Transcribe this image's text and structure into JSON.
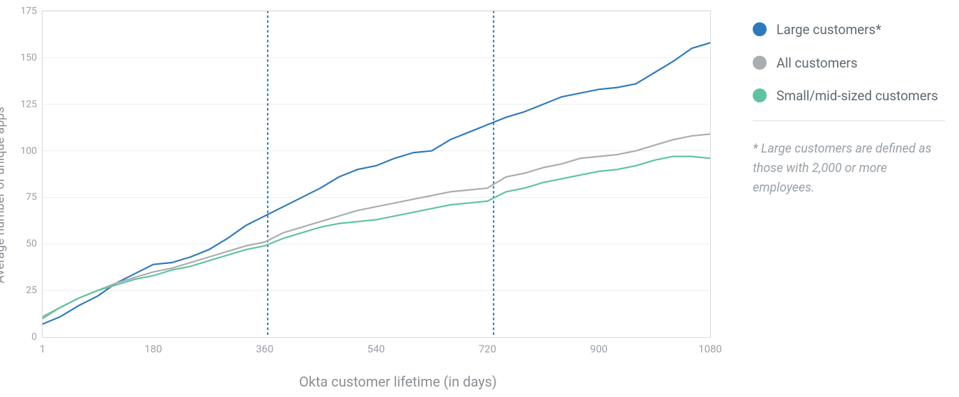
{
  "chart": {
    "type": "line",
    "y_axis_title": "Average number of unique apps",
    "x_axis_title": "Okta customer lifetime (in days)",
    "xlim": [
      1,
      1080
    ],
    "ylim": [
      0,
      175
    ],
    "xticks": [
      1,
      180,
      360,
      540,
      720,
      900,
      1080
    ],
    "yticks": [
      0,
      25,
      50,
      75,
      100,
      125,
      150,
      175
    ],
    "grid_color": "#eceeef",
    "border_color": "#d6d9db",
    "background_color": "#ffffff",
    "tick_label_color": "#9aa0a6",
    "axis_title_color": "#8a8f94",
    "tick_fontsize": 14,
    "axis_title_fontsize": 19,
    "reference_lines": {
      "x_values": [
        365,
        730
      ],
      "color": "#1f77b4",
      "dash": "2,5",
      "width": 2
    },
    "series": [
      {
        "name": "Large customers*",
        "color": "#2e79bd",
        "width": 2.2,
        "data": [
          [
            1,
            7
          ],
          [
            30,
            11
          ],
          [
            60,
            17
          ],
          [
            90,
            22
          ],
          [
            120,
            29
          ],
          [
            150,
            34
          ],
          [
            180,
            39
          ],
          [
            210,
            40
          ],
          [
            240,
            43
          ],
          [
            270,
            47
          ],
          [
            300,
            53
          ],
          [
            330,
            60
          ],
          [
            360,
            65
          ],
          [
            390,
            70
          ],
          [
            420,
            75
          ],
          [
            450,
            80
          ],
          [
            480,
            86
          ],
          [
            510,
            90
          ],
          [
            540,
            92
          ],
          [
            570,
            96
          ],
          [
            600,
            99
          ],
          [
            630,
            100
          ],
          [
            660,
            106
          ],
          [
            690,
            110
          ],
          [
            720,
            114
          ],
          [
            750,
            118
          ],
          [
            780,
            121
          ],
          [
            810,
            125
          ],
          [
            840,
            129
          ],
          [
            870,
            131
          ],
          [
            900,
            133
          ],
          [
            930,
            134
          ],
          [
            960,
            136
          ],
          [
            990,
            142
          ],
          [
            1020,
            148
          ],
          [
            1050,
            155
          ],
          [
            1080,
            158
          ]
        ]
      },
      {
        "name": "All customers",
        "color": "#a9adb0",
        "width": 2.2,
        "data": [
          [
            1,
            11
          ],
          [
            30,
            16
          ],
          [
            60,
            21
          ],
          [
            90,
            25
          ],
          [
            120,
            29
          ],
          [
            150,
            32
          ],
          [
            180,
            35
          ],
          [
            210,
            37
          ],
          [
            240,
            40
          ],
          [
            270,
            43
          ],
          [
            300,
            46
          ],
          [
            330,
            49
          ],
          [
            360,
            51
          ],
          [
            390,
            56
          ],
          [
            420,
            59
          ],
          [
            450,
            62
          ],
          [
            480,
            65
          ],
          [
            510,
            68
          ],
          [
            540,
            70
          ],
          [
            570,
            72
          ],
          [
            600,
            74
          ],
          [
            630,
            76
          ],
          [
            660,
            78
          ],
          [
            690,
            79
          ],
          [
            720,
            80
          ],
          [
            750,
            86
          ],
          [
            780,
            88
          ],
          [
            810,
            91
          ],
          [
            840,
            93
          ],
          [
            870,
            96
          ],
          [
            900,
            97
          ],
          [
            930,
            98
          ],
          [
            960,
            100
          ],
          [
            990,
            103
          ],
          [
            1020,
            106
          ],
          [
            1050,
            108
          ],
          [
            1080,
            109
          ]
        ]
      },
      {
        "name": "Small/mid-sized customers",
        "color": "#5ec3a0",
        "width": 2.2,
        "data": [
          [
            1,
            10
          ],
          [
            30,
            16
          ],
          [
            60,
            21
          ],
          [
            90,
            25
          ],
          [
            120,
            28
          ],
          [
            150,
            31
          ],
          [
            180,
            33
          ],
          [
            210,
            36
          ],
          [
            240,
            38
          ],
          [
            270,
            41
          ],
          [
            300,
            44
          ],
          [
            330,
            47
          ],
          [
            360,
            49
          ],
          [
            390,
            53
          ],
          [
            420,
            56
          ],
          [
            450,
            59
          ],
          [
            480,
            61
          ],
          [
            510,
            62
          ],
          [
            540,
            63
          ],
          [
            570,
            65
          ],
          [
            600,
            67
          ],
          [
            630,
            69
          ],
          [
            660,
            71
          ],
          [
            690,
            72
          ],
          [
            720,
            73
          ],
          [
            750,
            78
          ],
          [
            780,
            80
          ],
          [
            810,
            83
          ],
          [
            840,
            85
          ],
          [
            870,
            87
          ],
          [
            900,
            89
          ],
          [
            930,
            90
          ],
          [
            960,
            92
          ],
          [
            990,
            95
          ],
          [
            1020,
            97
          ],
          [
            1050,
            97
          ],
          [
            1080,
            96
          ]
        ]
      }
    ]
  },
  "legend": {
    "items": [
      {
        "label": "Large customers*",
        "color": "#2e79bd"
      },
      {
        "label": "All customers",
        "color": "#a9adb0"
      },
      {
        "label": "Small/mid-sized customers",
        "color": "#5ec3a0"
      }
    ],
    "swatch_size": 20,
    "label_color": "#5f6a72",
    "label_fontsize": 19,
    "divider_color": "#d8dcde"
  },
  "footnote": {
    "text": "* Large customers are defined as those with 2,000 or more employees.",
    "color": "#9aa0a6",
    "fontsize": 18
  }
}
